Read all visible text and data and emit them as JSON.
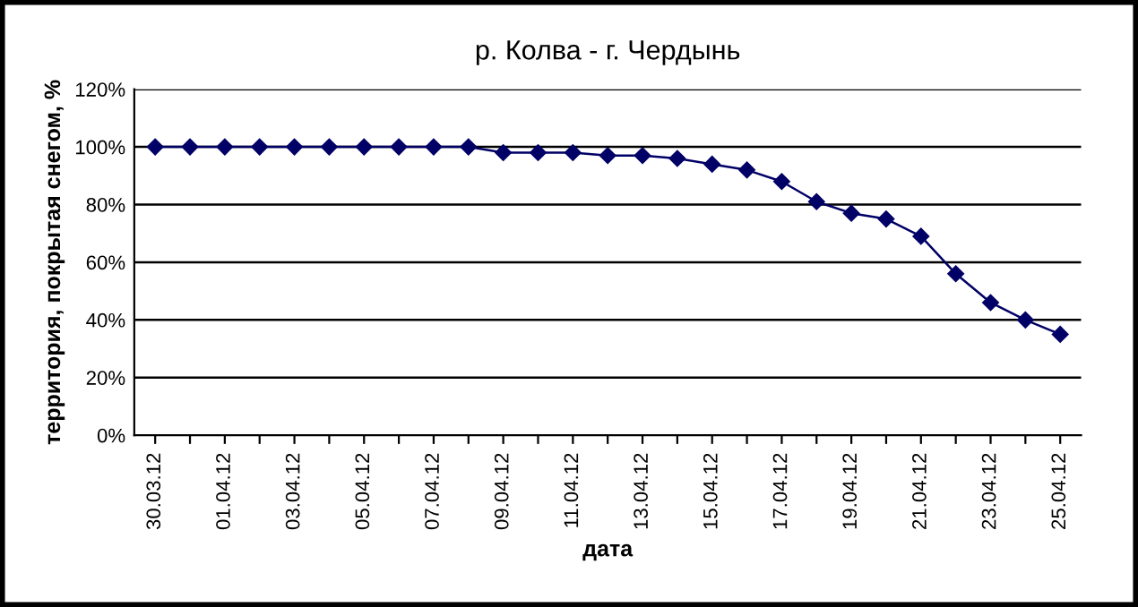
{
  "chart_data": {
    "type": "line",
    "title": "р. Колва - г. Чердынь",
    "xlabel": "дата",
    "ylabel": "территория, покрытая снегом, %",
    "categories": [
      "30.03.12",
      null,
      "01.04.12",
      null,
      "03.04.12",
      null,
      "05.04.12",
      null,
      "07.04.12",
      null,
      "09.04.12",
      null,
      "11.04.12",
      null,
      "13.04.12",
      null,
      "15.04.12",
      null,
      "17.04.12",
      null,
      "19.04.12",
      null,
      "21.04.12",
      null,
      "23.04.12",
      null,
      "25.04.12"
    ],
    "series": [
      {
        "color": "#000066",
        "values": [
          100,
          100,
          100,
          100,
          100,
          100,
          100,
          100,
          100,
          100,
          98,
          98,
          98,
          97,
          97,
          96,
          94,
          92,
          88,
          81,
          77,
          75,
          69,
          56,
          46,
          40,
          35
        ]
      }
    ],
    "ylim": [
      0,
      120
    ],
    "yticks": [
      {
        "value": 0,
        "label": "0%"
      },
      {
        "value": 20,
        "label": "20%"
      },
      {
        "value": 40,
        "label": "40%"
      },
      {
        "value": 60,
        "label": "60%"
      },
      {
        "value": 80,
        "label": "80%"
      },
      {
        "value": 100,
        "label": "100%"
      },
      {
        "value": 120,
        "label": "120%"
      }
    ],
    "grid": "y",
    "legend": false,
    "marker": "diamond",
    "line_style": "solid"
  }
}
